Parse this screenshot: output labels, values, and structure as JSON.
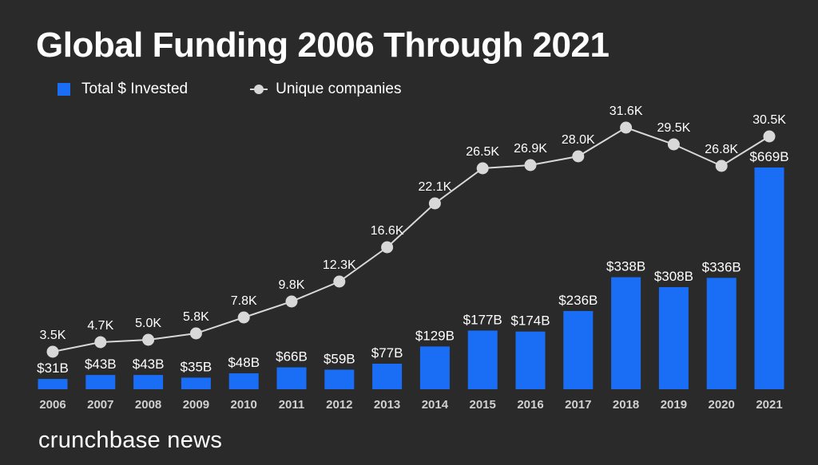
{
  "chart_data": {
    "type": "bar",
    "title": "Global Funding 2006 Through 2021",
    "xlabel": "",
    "ylabel": "",
    "grid": false,
    "legend_position": "top-left",
    "categories": [
      "2006",
      "2007",
      "2008",
      "2009",
      "2010",
      "2011",
      "2012",
      "2013",
      "2014",
      "2015",
      "2016",
      "2017",
      "2018",
      "2019",
      "2020",
      "2021"
    ],
    "series": [
      {
        "name": "Total $ Invested",
        "type": "bar",
        "unit": "USD billions",
        "color": "#1a6ef5",
        "values": [
          31,
          43,
          43,
          35,
          48,
          66,
          59,
          77,
          129,
          177,
          174,
          236,
          338,
          308,
          336,
          669
        ],
        "labels": [
          "$31B",
          "$43B",
          "$43B",
          "$35B",
          "$48B",
          "$66B",
          "$59B",
          "$77B",
          "$129B",
          "$177B",
          "$174B",
          "$236B",
          "$338B",
          "$308B",
          "$336B",
          "$669B"
        ]
      },
      {
        "name": "Unique companies",
        "type": "line",
        "unit": "thousands",
        "color": "#d8d8d8",
        "values": [
          3.5,
          4.7,
          5.0,
          5.8,
          7.8,
          9.8,
          12.3,
          16.6,
          22.1,
          26.5,
          26.9,
          28.0,
          31.6,
          29.5,
          26.8,
          30.5
        ],
        "labels": [
          "3.5K",
          "4.7K",
          "5.0K",
          "5.8K",
          "7.8K",
          "9.8K",
          "12.3K",
          "16.6K",
          "22.1K",
          "26.5K",
          "26.9K",
          "28.0K",
          "31.6K",
          "29.5K",
          "26.8K",
          "30.5K"
        ]
      }
    ]
  },
  "legend": {
    "bar_label": "Total $ Invested",
    "line_label": "Unique companies"
  },
  "branding": {
    "logo_text": "crunchbase news"
  },
  "colors": {
    "background": "#2a2a2a",
    "bar": "#1a6ef5",
    "line": "#d8d8d8",
    "text": "#ffffff",
    "axis_text": "#d0d0d0"
  }
}
